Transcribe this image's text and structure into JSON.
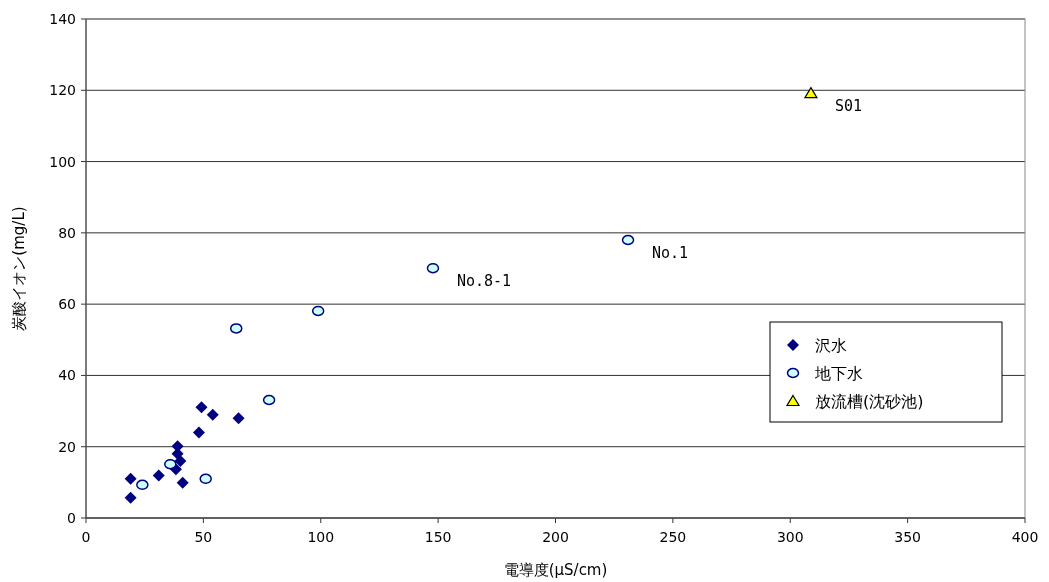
{
  "chart_data": {
    "type": "scatter",
    "xlabel": "電導度(μS/cm)",
    "ylabel": "炭酸イオン(mg/L)",
    "xlim": [
      0,
      400
    ],
    "xticks": [
      0,
      50,
      100,
      150,
      200,
      250,
      300,
      350,
      400
    ],
    "ylim": [
      0,
      140
    ],
    "yticks": [
      0,
      20,
      40,
      60,
      80,
      100,
      120,
      140
    ],
    "grid": "y",
    "legend": "right",
    "series": [
      {
        "name": "沢水",
        "color": "#000080",
        "marker": "diamond",
        "x": [
          19,
          19,
          31,
          39,
          39,
          40.2,
          38.3,
          41.2,
          48.1,
          49.2,
          54,
          65
        ],
        "values": [
          11,
          5.7,
          11.9,
          20.1,
          18,
          16,
          13.7,
          9.9,
          24,
          31.1,
          29,
          28
        ]
      },
      {
        "name": "地下水",
        "color": "#ccffff",
        "marker": "circle",
        "x": [
          24,
          35.9,
          51,
          78,
          64,
          98.9,
          147.8,
          230.9
        ],
        "values": [
          9.3,
          15.1,
          11,
          33.1,
          53.2,
          58.1,
          70.1,
          78
        ]
      },
      {
        "name": "放流槽(沈砂池)",
        "color": "#ffff00",
        "marker": "triangle",
        "x": [
          308.8
        ],
        "values": [
          119.2
        ]
      }
    ],
    "annotations": [
      {
        "text": "No.8-1",
        "x": 147.8,
        "y": 70.1
      },
      {
        "text": "No.1",
        "x": 230.9,
        "y": 78
      },
      {
        "text": "S01",
        "x": 308.8,
        "y": 119.2
      }
    ]
  }
}
